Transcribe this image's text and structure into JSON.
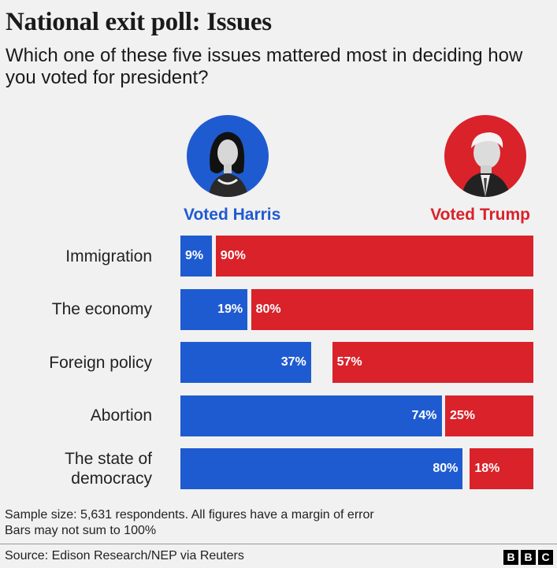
{
  "header": {
    "title": "National exit poll: Issues",
    "subtitle": "Which one of these five issues mattered most in deciding how you voted for president?"
  },
  "candidates": {
    "harris": {
      "label": "Voted Harris",
      "color": "#1f5bd0",
      "icon": "harris-portrait-icon"
    },
    "trump": {
      "label": "Voted Trump",
      "color": "#d9222a",
      "icon": "trump-portrait-icon"
    }
  },
  "chart_data": {
    "type": "bar",
    "orientation": "horizontal-split",
    "categories": [
      "Immigration",
      "The economy",
      "Foreign policy",
      "Abortion",
      "The state of democracy"
    ],
    "category_lines": [
      [
        "Immigration"
      ],
      [
        "The economy"
      ],
      [
        "Foreign policy"
      ],
      [
        "Abortion"
      ],
      [
        "The state of",
        "democracy"
      ]
    ],
    "series": [
      {
        "name": "Voted Harris",
        "values": [
          9,
          19,
          37,
          74,
          80
        ],
        "labels": [
          "9%",
          "19%",
          "37%",
          "74%",
          "80%"
        ],
        "color": "#1f5bd0"
      },
      {
        "name": "Voted Trump",
        "values": [
          90,
          80,
          57,
          25,
          18
        ],
        "labels": [
          "90%",
          "80%",
          "57%",
          "25%",
          "18%"
        ],
        "color": "#d9222a"
      }
    ],
    "xlim": [
      0,
      100
    ],
    "grid": false
  },
  "footer": {
    "note_line1": "Sample size: 5,631 respondents. All figures have a margin of error",
    "note_line2": "Bars may not sum to 100%",
    "source": "Source: Edison Research/NEP via Reuters",
    "logo_letters": [
      "B",
      "B",
      "C"
    ]
  }
}
